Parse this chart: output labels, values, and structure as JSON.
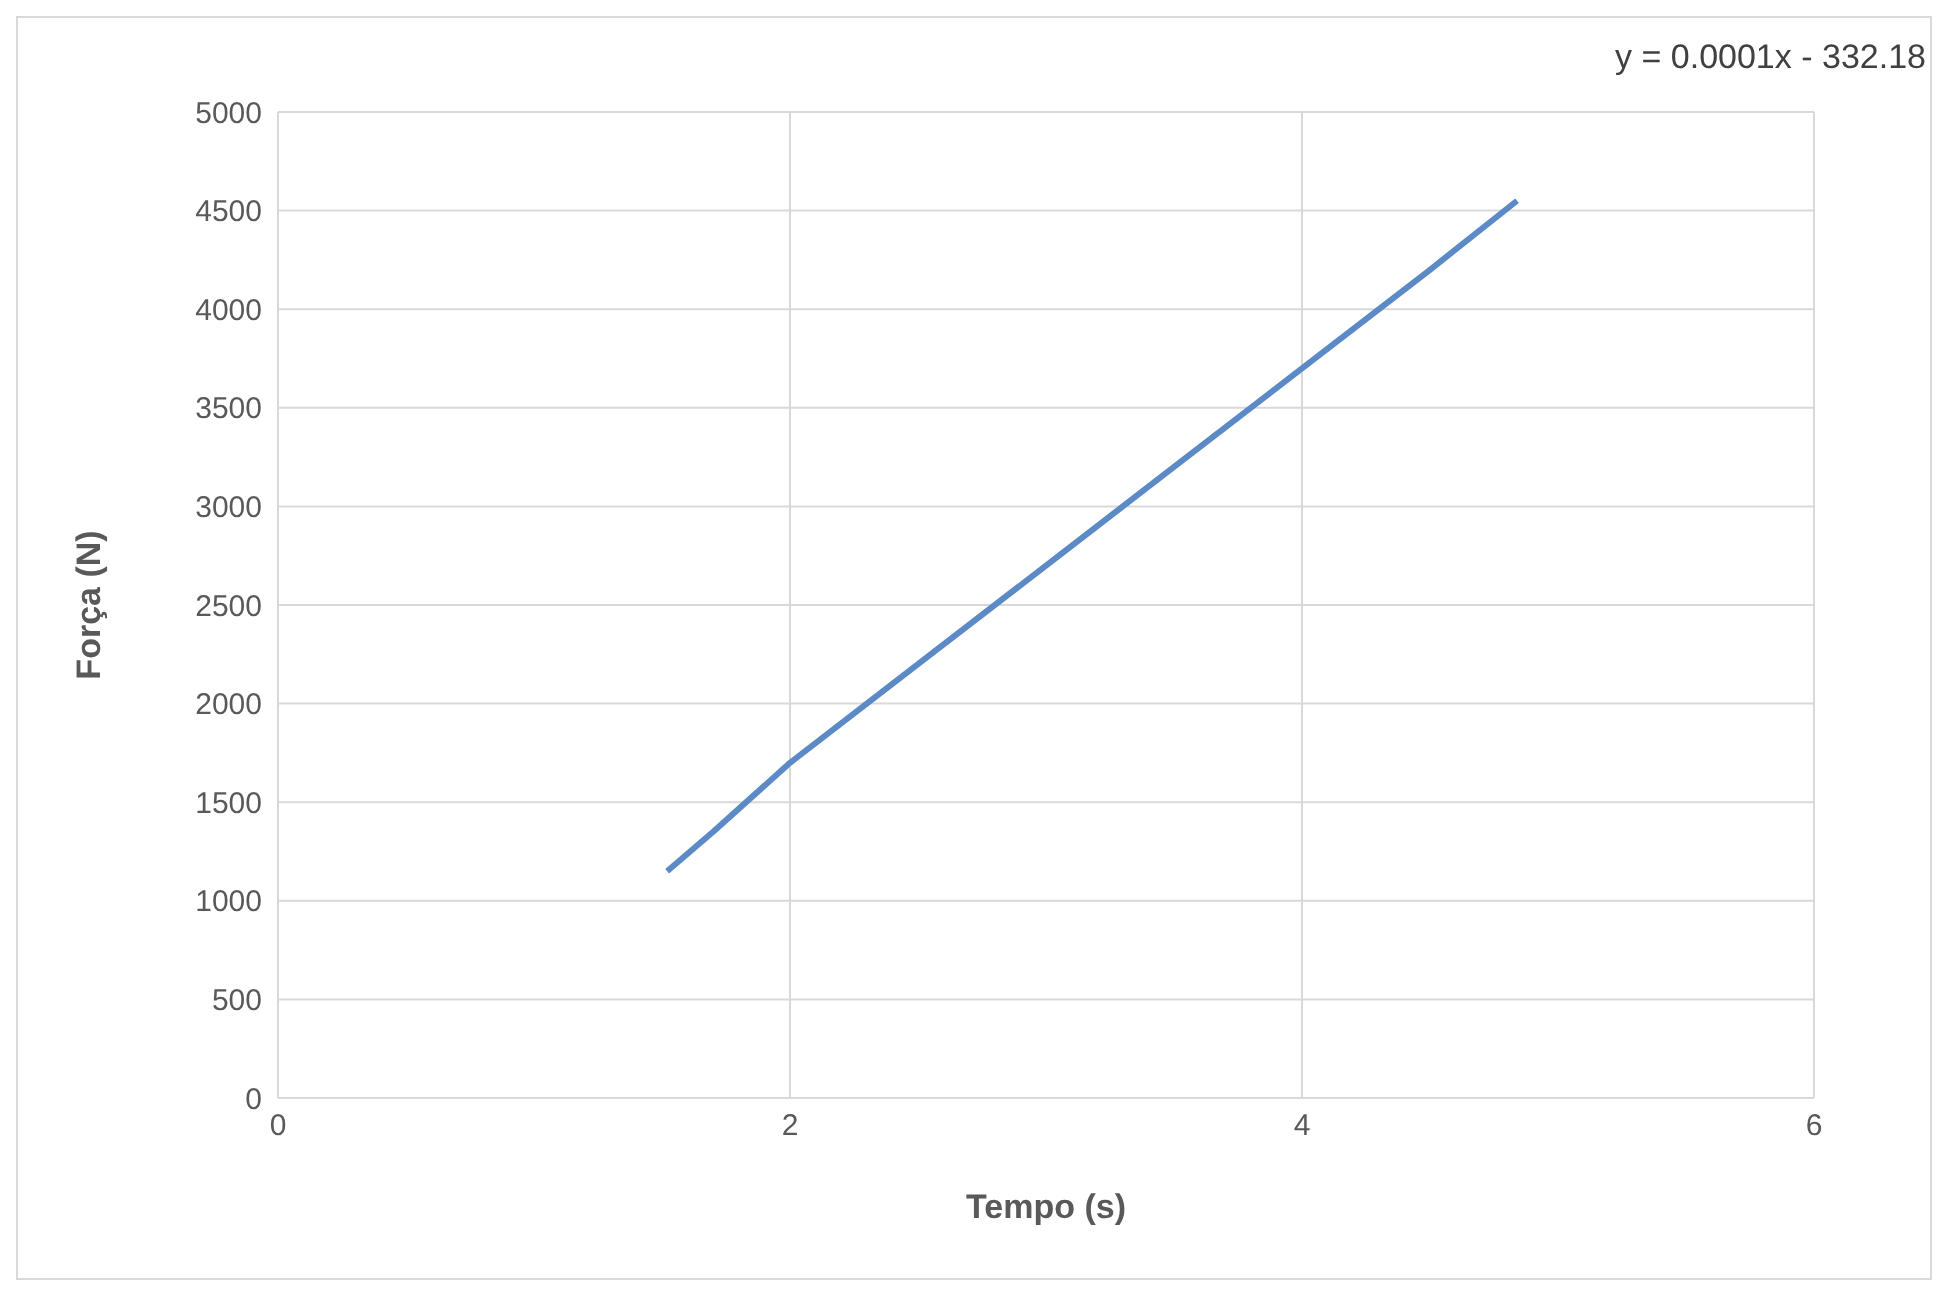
{
  "chart_data": {
    "type": "line",
    "xlabel": "Tempo (s)",
    "ylabel": "Força (N)",
    "annotations": [
      "y = 0.0001x - 332.18"
    ],
    "x": [
      1.52,
      1.7,
      2,
      2.5,
      3,
      3.5,
      4,
      4.5,
      4.84
    ],
    "series": [
      {
        "color": "#5b8ac6",
        "values": [
          1150,
          1350,
          1700,
          2200,
          2700,
          3200,
          3700,
          4200,
          4550
        ]
      }
    ],
    "xlim": [
      0,
      6
    ],
    "xticks": [
      0,
      2,
      4,
      6
    ],
    "ylim": [
      0,
      5000
    ],
    "yticks": [
      0,
      500,
      1000,
      1500,
      2000,
      2500,
      3000,
      3500,
      4000,
      4500,
      5000
    ],
    "grid": true,
    "legend": false,
    "marker": "none",
    "line_style": "solid"
  }
}
